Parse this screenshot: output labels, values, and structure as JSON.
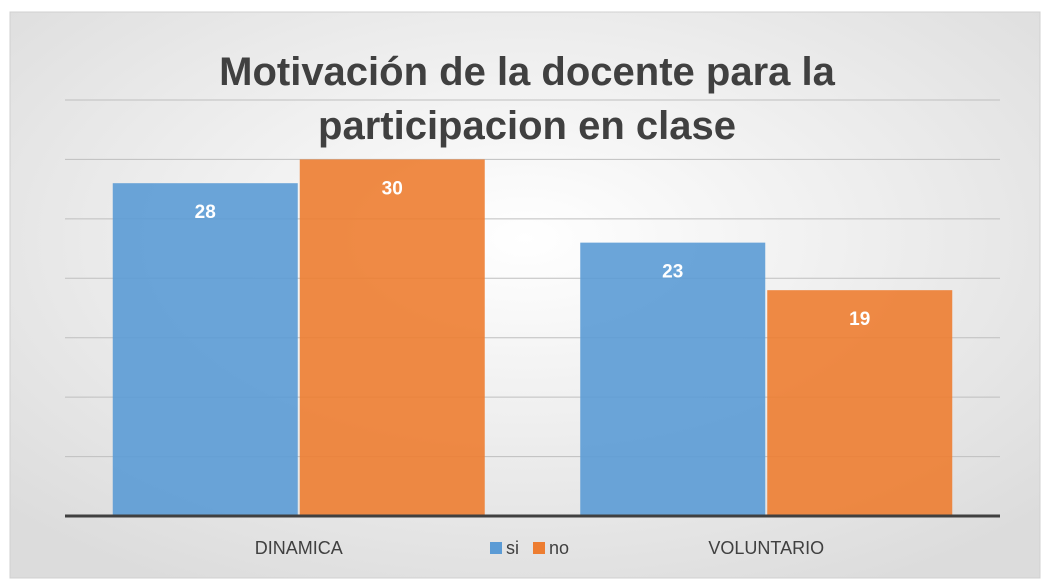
{
  "chart_data": {
    "type": "bar",
    "title": "Motivación de la docente para la participacion en clase",
    "categories": [
      "DINAMICA",
      "VOLUNTARIO"
    ],
    "series": [
      {
        "name": "si",
        "color": "#5b9bd5",
        "values": [
          28,
          23
        ]
      },
      {
        "name": "no",
        "color": "#ed7d31",
        "values": [
          30,
          19
        ]
      }
    ],
    "ylim": [
      0,
      35
    ],
    "yticks": [
      0,
      5,
      10,
      15,
      20,
      25,
      30,
      35
    ],
    "grid": true,
    "legend": "bottom"
  }
}
